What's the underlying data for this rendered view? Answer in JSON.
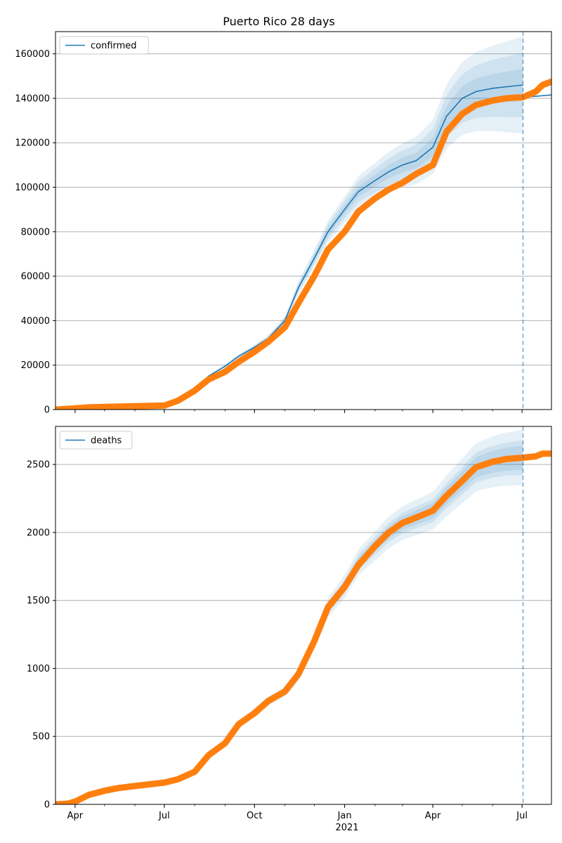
{
  "title": "Puerto Rico 28 days",
  "colors": {
    "model_line": "#1f77b4",
    "band": "#1f77b4",
    "observed": "#ff7f0e",
    "grid": "#b0b0b0",
    "cutoff": "#1f77b4"
  },
  "chart_data": [
    {
      "type": "line",
      "panel": "top",
      "title": "Puerto Rico 28 days",
      "legend": {
        "entries": [
          "confirmed"
        ],
        "placement": "top-left"
      },
      "x_axis": {
        "range": [
          "2020-03-12",
          "2021-07-31"
        ],
        "major_ticks": [
          {
            "date": "2020-04-01",
            "label": "Apr"
          },
          {
            "date": "2020-07-01",
            "label": "Jul"
          },
          {
            "date": "2020-10-01",
            "label": "Oct"
          },
          {
            "date": "2021-01-01",
            "label": "Jan",
            "sublabel": "2021"
          },
          {
            "date": "2021-04-01",
            "label": "Apr"
          },
          {
            "date": "2021-07-01",
            "label": "Jul"
          }
        ],
        "tick_labels_visible": false
      },
      "y_axis": {
        "range": [
          0,
          170000
        ],
        "ticks": [
          0,
          20000,
          40000,
          60000,
          80000,
          100000,
          120000,
          140000,
          160000
        ],
        "grid": true
      },
      "cutoff_date": "2021-07-02",
      "series": [
        {
          "name": "confirmed",
          "role": "model",
          "points": [
            [
              "2020-03-12",
              0
            ],
            [
              "2020-04-01",
              800
            ],
            [
              "2020-05-01",
              1500
            ],
            [
              "2020-06-01",
              1700
            ],
            [
              "2020-07-01",
              1900
            ],
            [
              "2020-07-15",
              4000
            ],
            [
              "2020-08-01",
              9000
            ],
            [
              "2020-08-15",
              15000
            ],
            [
              "2020-09-01",
              19500
            ],
            [
              "2020-09-15",
              24000
            ],
            [
              "2020-10-01",
              28000
            ],
            [
              "2020-10-15",
              32000
            ],
            [
              "2020-11-01",
              40000
            ],
            [
              "2020-11-15",
              55000
            ],
            [
              "2020-12-01",
              68000
            ],
            [
              "2020-12-15",
              80000
            ],
            [
              "2021-01-01",
              90000
            ],
            [
              "2021-01-15",
              98000
            ],
            [
              "2021-02-01",
              103000
            ],
            [
              "2021-02-15",
              107000
            ],
            [
              "2021-03-01",
              110000
            ],
            [
              "2021-03-15",
              112000
            ],
            [
              "2021-04-01",
              118000
            ],
            [
              "2021-04-15",
              132000
            ],
            [
              "2021-05-01",
              140000
            ],
            [
              "2021-05-15",
              143000
            ],
            [
              "2021-06-01",
              144500
            ],
            [
              "2021-06-15",
              145200
            ],
            [
              "2021-07-02",
              146000
            ]
          ],
          "extension": [
            [
              "2021-07-02",
              140500
            ],
            [
              "2021-07-31",
              141500
            ]
          ]
        },
        {
          "name": "",
          "role": "uncertainty-bands",
          "half_width_fraction_at_cutoff": [
            0.05,
            0.1,
            0.15
          ],
          "half_width_fraction_base": [
            0.005,
            0.01,
            0.015
          ]
        },
        {
          "name": "",
          "role": "observed",
          "points": [
            [
              "2020-03-12",
              0
            ],
            [
              "2020-04-01",
              500
            ],
            [
              "2020-04-15",
              1000
            ],
            [
              "2020-05-01",
              1200
            ],
            [
              "2020-06-01",
              1500
            ],
            [
              "2020-07-01",
              1800
            ],
            [
              "2020-07-15",
              4000
            ],
            [
              "2020-08-01",
              8500
            ],
            [
              "2020-08-15",
              13500
            ],
            [
              "2020-09-01",
              17000
            ],
            [
              "2020-09-15",
              21500
            ],
            [
              "2020-10-01",
              26000
            ],
            [
              "2020-10-15",
              30500
            ],
            [
              "2020-11-01",
              37000
            ],
            [
              "2020-11-15",
              48000
            ],
            [
              "2020-12-01",
              60000
            ],
            [
              "2020-12-15",
              72000
            ],
            [
              "2021-01-01",
              80000
            ],
            [
              "2021-01-15",
              89000
            ],
            [
              "2021-02-01",
              95000
            ],
            [
              "2021-02-15",
              99000
            ],
            [
              "2021-03-01",
              102000
            ],
            [
              "2021-03-15",
              106000
            ],
            [
              "2021-04-01",
              110000
            ],
            [
              "2021-04-15",
              125000
            ],
            [
              "2021-05-01",
              133000
            ],
            [
              "2021-05-15",
              137000
            ],
            [
              "2021-06-01",
              139000
            ],
            [
              "2021-06-15",
              140000
            ],
            [
              "2021-07-02",
              140500
            ],
            [
              "2021-07-15",
              143000
            ],
            [
              "2021-07-22",
              146000
            ],
            [
              "2021-07-31",
              147500
            ]
          ]
        }
      ]
    },
    {
      "type": "line",
      "panel": "bottom",
      "legend": {
        "entries": [
          "deaths"
        ],
        "placement": "top-left"
      },
      "x_axis": {
        "range": [
          "2020-03-12",
          "2021-07-31"
        ],
        "major_ticks": [
          {
            "date": "2020-04-01",
            "label": "Apr"
          },
          {
            "date": "2020-07-01",
            "label": "Jul"
          },
          {
            "date": "2020-10-01",
            "label": "Oct"
          },
          {
            "date": "2021-01-01",
            "label": "Jan",
            "sublabel": "2021"
          },
          {
            "date": "2021-04-01",
            "label": "Apr"
          },
          {
            "date": "2021-07-01",
            "label": "Jul"
          }
        ],
        "tick_labels_visible": true
      },
      "y_axis": {
        "range": [
          0,
          2780
        ],
        "ticks": [
          0,
          500,
          1000,
          1500,
          2000,
          2500
        ],
        "grid": true
      },
      "cutoff_date": "2021-07-02",
      "series": [
        {
          "name": "deaths",
          "role": "model",
          "points": [
            [
              "2020-03-12",
              0
            ],
            [
              "2020-04-01",
              30
            ],
            [
              "2020-05-01",
              100
            ],
            [
              "2020-06-01",
              140
            ],
            [
              "2020-07-01",
              160
            ],
            [
              "2020-07-15",
              180
            ],
            [
              "2020-08-01",
              240
            ],
            [
              "2020-08-15",
              360
            ],
            [
              "2020-09-01",
              450
            ],
            [
              "2020-09-15",
              590
            ],
            [
              "2020-10-01",
              680
            ],
            [
              "2020-10-15",
              760
            ],
            [
              "2020-11-01",
              830
            ],
            [
              "2020-11-15",
              950
            ],
            [
              "2020-12-01",
              1200
            ],
            [
              "2020-12-15",
              1450
            ],
            [
              "2021-01-01",
              1600
            ],
            [
              "2021-01-15",
              1780
            ],
            [
              "2021-02-01",
              1900
            ],
            [
              "2021-02-15",
              2000
            ],
            [
              "2021-03-01",
              2070
            ],
            [
              "2021-03-15",
              2110
            ],
            [
              "2021-04-01",
              2160
            ],
            [
              "2021-04-15",
              2270
            ],
            [
              "2021-05-01",
              2380
            ],
            [
              "2021-05-15",
              2480
            ],
            [
              "2021-06-01",
              2520
            ],
            [
              "2021-06-15",
              2540
            ],
            [
              "2021-07-02",
              2550
            ]
          ],
          "extension": [
            [
              "2021-07-02",
              2555
            ],
            [
              "2021-07-31",
              2575
            ]
          ]
        },
        {
          "name": "",
          "role": "uncertainty-bands",
          "half_width_fraction_at_cutoff": [
            0.035,
            0.05,
            0.08
          ],
          "half_width_fraction_base": [
            0.01,
            0.02,
            0.035
          ]
        },
        {
          "name": "",
          "role": "observed",
          "points": [
            [
              "2020-03-12",
              0
            ],
            [
              "2020-03-25",
              5
            ],
            [
              "2020-04-01",
              20
            ],
            [
              "2020-04-15",
              70
            ],
            [
              "2020-05-01",
              100
            ],
            [
              "2020-05-15",
              120
            ],
            [
              "2020-06-01",
              135
            ],
            [
              "2020-07-01",
              160
            ],
            [
              "2020-07-15",
              185
            ],
            [
              "2020-08-01",
              240
            ],
            [
              "2020-08-15",
              360
            ],
            [
              "2020-09-01",
              450
            ],
            [
              "2020-09-15",
              590
            ],
            [
              "2020-10-01",
              670
            ],
            [
              "2020-10-15",
              760
            ],
            [
              "2020-11-01",
              830
            ],
            [
              "2020-11-15",
              960
            ],
            [
              "2020-12-01",
              1200
            ],
            [
              "2020-12-15",
              1450
            ],
            [
              "2021-01-01",
              1600
            ],
            [
              "2021-01-15",
              1760
            ],
            [
              "2021-02-01",
              1900
            ],
            [
              "2021-02-15",
              2000
            ],
            [
              "2021-03-01",
              2070
            ],
            [
              "2021-03-15",
              2110
            ],
            [
              "2021-04-01",
              2160
            ],
            [
              "2021-04-15",
              2270
            ],
            [
              "2021-05-01",
              2380
            ],
            [
              "2021-05-15",
              2480
            ],
            [
              "2021-06-01",
              2520
            ],
            [
              "2021-06-15",
              2540
            ],
            [
              "2021-07-02",
              2550
            ],
            [
              "2021-07-15",
              2560
            ],
            [
              "2021-07-22",
              2580
            ],
            [
              "2021-07-31",
              2580
            ]
          ]
        }
      ]
    }
  ]
}
